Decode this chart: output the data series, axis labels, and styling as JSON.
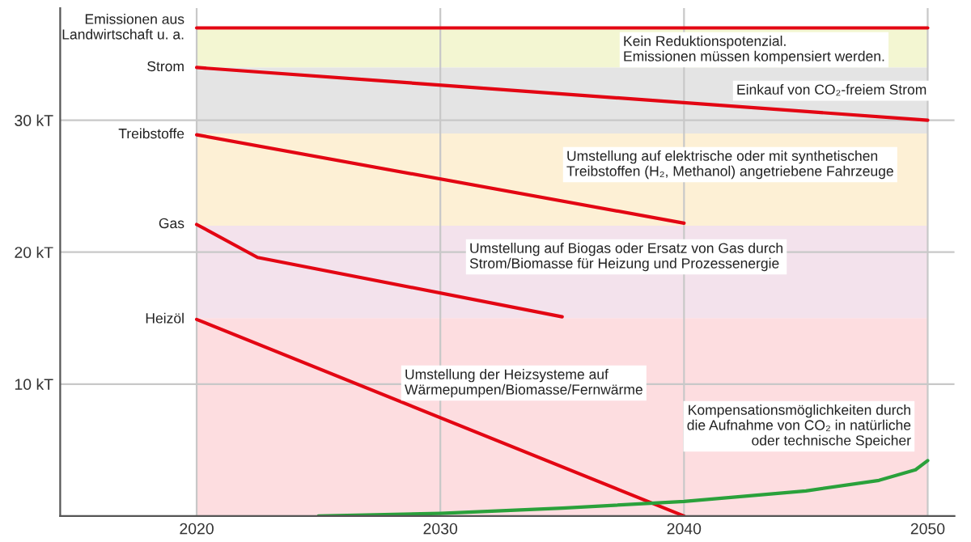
{
  "chart_data": {
    "type": "line",
    "xlim": [
      2014.4,
      2051.1
    ],
    "ylim": [
      0,
      38.5
    ],
    "xticks": [
      2020,
      2030,
      2040,
      2050
    ],
    "yticks": [
      {
        "value": 10,
        "label": "10 kT"
      },
      {
        "value": 20,
        "label": "20 kT"
      },
      {
        "value": 30,
        "label": "30 kT"
      }
    ],
    "grid": true,
    "legend": false,
    "marker": "none",
    "line_style": "solid",
    "series": [
      {
        "name": "Emissionen aus\nLandwirtschaft u. a.",
        "color": "#e30613",
        "x": [
          2020,
          2050
        ],
        "values": [
          37,
          37
        ]
      },
      {
        "name": "Strom",
        "color": "#e30613",
        "x": [
          2020,
          2050
        ],
        "values": [
          34,
          30
        ]
      },
      {
        "name": "Treibstoffe",
        "color": "#e30613",
        "x": [
          2020,
          2040
        ],
        "values": [
          28.9,
          22.2
        ]
      },
      {
        "name": "Gas",
        "color": "#e30613",
        "x": [
          2020,
          2022.5,
          2035
        ],
        "values": [
          22.1,
          19.6,
          15.1
        ]
      },
      {
        "name": "Heizöl",
        "color": "#e30613",
        "x": [
          2020,
          2040
        ],
        "values": [
          14.9,
          0
        ]
      },
      {
        "color": "#2aa13b",
        "x": [
          2025,
          2030,
          2035,
          2040,
          2045,
          2048,
          2049.5,
          2050
        ],
        "values": [
          0,
          0.2,
          0.6,
          1.1,
          1.9,
          2.7,
          3.5,
          4.2
        ]
      }
    ],
    "bands": [
      {
        "axis": "y",
        "from": 34,
        "to": 37,
        "color": "#f3f6d2"
      },
      {
        "axis": "y",
        "from": 29,
        "to": 34,
        "color": "#e4e4e4"
      },
      {
        "axis": "y",
        "from": 22,
        "to": 29,
        "color": "#fdf0d5"
      },
      {
        "axis": "y",
        "from": 15,
        "to": 22,
        "color": "#f3e2ec"
      },
      {
        "axis": "y",
        "from": 0,
        "to": 15,
        "color": "#fddde0"
      }
    ],
    "annotations": [
      "Kein Reduktionspotenzial.\nEmissionen müssen kompensiert werden.",
      "Einkauf von CO₂-freiem Strom",
      "Umstellung auf elektrische oder mit synthetischen\nTreibstoffen (H₂, Methanol) angetriebene Fahrzeuge",
      "Umstellung auf Biogas oder Ersatz von Gas durch\nStrom/Biomasse für Heizung und Prozessenergie",
      "Umstellung der Heizsysteme auf\nWärmepumpen/Biomasse/Fernwärme",
      "Kompensationsmöglichkeiten durch\ndie Aufnahme von CO₂ in natürliche\noder technische Speicher"
    ]
  }
}
